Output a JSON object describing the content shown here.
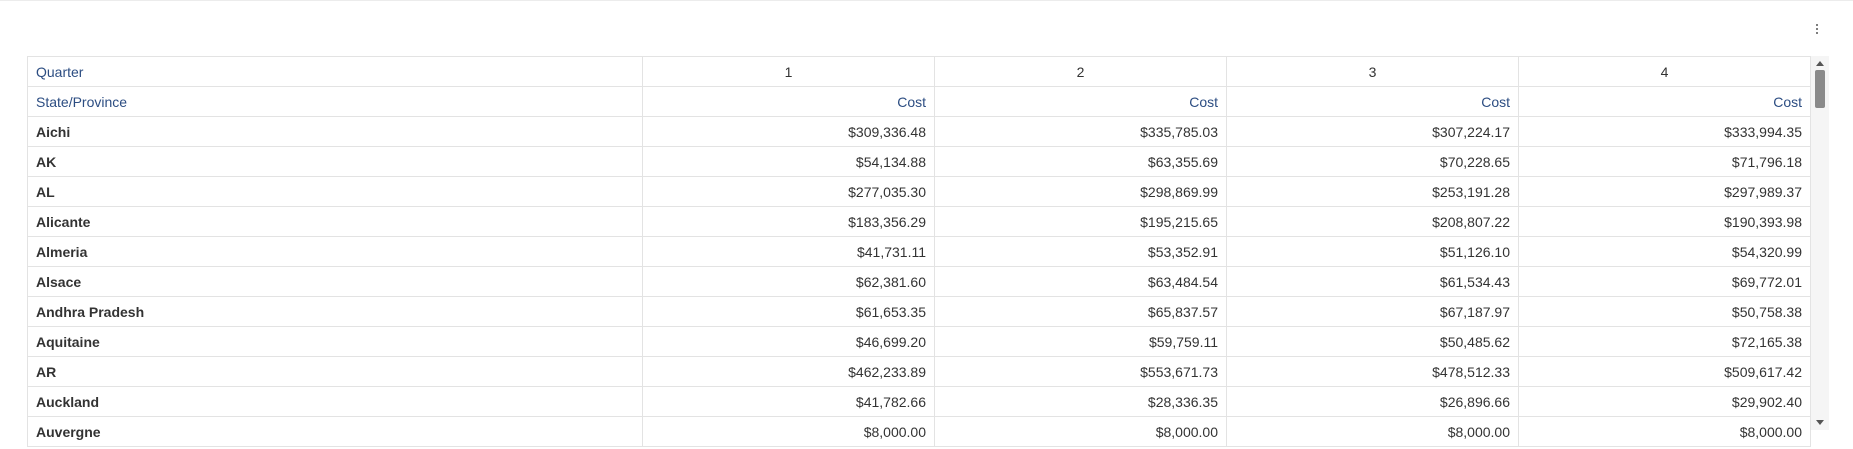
{
  "toolbar": {
    "menu_icon": "kebab-menu-icon"
  },
  "pivot": {
    "column_dimension_label": "Quarter",
    "row_dimension_label": "State/Province",
    "quarters": [
      "1",
      "2",
      "3",
      "4"
    ],
    "measure_label": "Cost",
    "rows": [
      {
        "label": "Aichi",
        "values": [
          "$309,336.48",
          "$335,785.03",
          "$307,224.17",
          "$333,994.35"
        ]
      },
      {
        "label": "AK",
        "values": [
          "$54,134.88",
          "$63,355.69",
          "$70,228.65",
          "$71,796.18"
        ]
      },
      {
        "label": "AL",
        "values": [
          "$277,035.30",
          "$298,869.99",
          "$253,191.28",
          "$297,989.37"
        ]
      },
      {
        "label": "Alicante",
        "values": [
          "$183,356.29",
          "$195,215.65",
          "$208,807.22",
          "$190,393.98"
        ]
      },
      {
        "label": "Almeria",
        "values": [
          "$41,731.11",
          "$53,352.91",
          "$51,126.10",
          "$54,320.99"
        ]
      },
      {
        "label": "Alsace",
        "values": [
          "$62,381.60",
          "$63,484.54",
          "$61,534.43",
          "$69,772.01"
        ]
      },
      {
        "label": "Andhra Pradesh",
        "values": [
          "$61,653.35",
          "$65,837.57",
          "$67,187.97",
          "$50,758.38"
        ]
      },
      {
        "label": "Aquitaine",
        "values": [
          "$46,699.20",
          "$59,759.11",
          "$50,485.62",
          "$72,165.38"
        ]
      },
      {
        "label": "AR",
        "values": [
          "$462,233.89",
          "$553,671.73",
          "$478,512.33",
          "$509,617.42"
        ]
      },
      {
        "label": "Auckland",
        "values": [
          "$41,782.66",
          "$28,336.35",
          "$26,896.66",
          "$29,902.40"
        ]
      },
      {
        "label": "Auvergne",
        "values": [
          "$8,000.00",
          "$8,000.00",
          "$8,000.00",
          "$8,000.00"
        ]
      }
    ]
  }
}
